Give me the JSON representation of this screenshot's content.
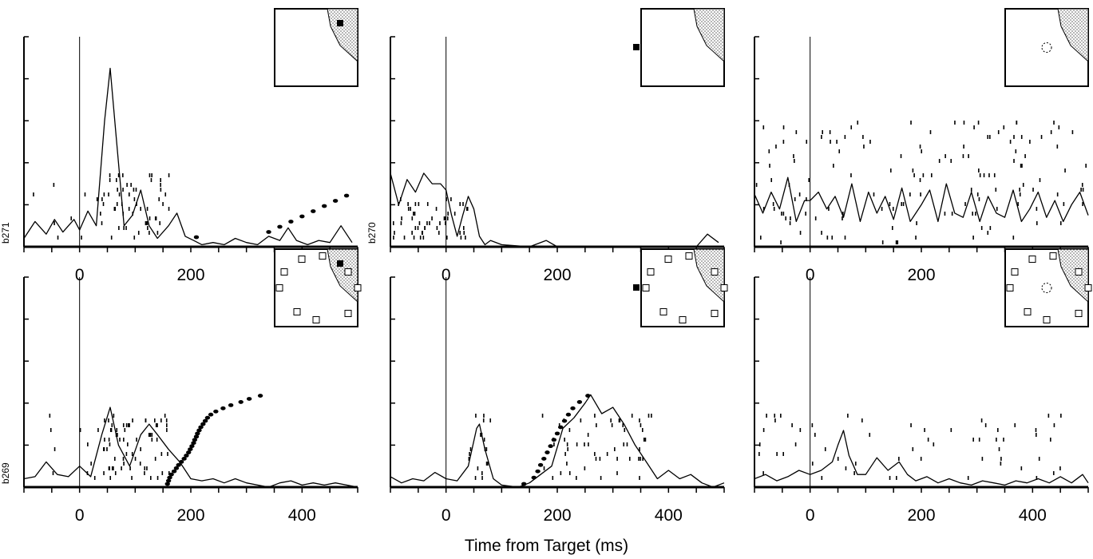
{
  "figure": {
    "xaxis_title": "Time from Target (ms)",
    "colors": {
      "ink": "#000000",
      "background": "#ffffff",
      "shaded_region": "#888888"
    }
  },
  "chart_data": [
    {
      "type": "raster",
      "unit_label": "b271",
      "x_ticks": [
        0,
        200,
        400
      ],
      "xlim": [
        -100,
        500
      ],
      "target_line_x": 0,
      "inset": {
        "stimulus": "filled-square",
        "stimulus_location": "upper-right",
        "shaded_region": "upper-right",
        "array": false
      },
      "density_curve": {
        "x": [
          -100,
          -80,
          -60,
          -45,
          -30,
          -10,
          0,
          15,
          30,
          45,
          55,
          65,
          80,
          95,
          110,
          125,
          140,
          160,
          175,
          190,
          205,
          220,
          240,
          260,
          280,
          300,
          320,
          340,
          360,
          375,
          390,
          410,
          430,
          450,
          470,
          490
        ],
        "y": [
          0.04,
          0.12,
          0.06,
          0.13,
          0.07,
          0.13,
          0.08,
          0.17,
          0.1,
          0.6,
          0.85,
          0.55,
          0.1,
          0.15,
          0.27,
          0.1,
          0.04,
          0.1,
          0.16,
          0.05,
          0.03,
          0.01,
          0.02,
          0.01,
          0.04,
          0.02,
          0.01,
          0.05,
          0.03,
          0.09,
          0.03,
          0.01,
          0.03,
          0.02,
          0.1,
          0.02
        ]
      },
      "saccade_onsets": [
        210,
        340,
        360,
        380,
        400,
        420,
        440,
        460,
        480
      ]
    },
    {
      "type": "raster",
      "unit_label": "b270",
      "x_ticks": [
        0,
        200,
        400
      ],
      "xlim": [
        -100,
        500
      ],
      "target_line_x": 0,
      "inset": {
        "stimulus": "filled-square",
        "stimulus_location": "left",
        "shaded_region": "upper-right",
        "array": false
      },
      "density_curve": {
        "x": [
          -100,
          -85,
          -70,
          -55,
          -40,
          -25,
          -10,
          0,
          10,
          20,
          30,
          40,
          50,
          60,
          70,
          80,
          100,
          150,
          180,
          200,
          250,
          300,
          350,
          400,
          450,
          470,
          490
        ],
        "y": [
          0.35,
          0.2,
          0.32,
          0.26,
          0.35,
          0.3,
          0.3,
          0.27,
          0.15,
          0.05,
          0.15,
          0.24,
          0.18,
          0.05,
          0.01,
          0.03,
          0.01,
          0.0,
          0.03,
          0.0,
          0.0,
          0.0,
          0.0,
          0.0,
          0.0,
          0.06,
          0.02
        ]
      },
      "saccade_onsets": []
    },
    {
      "type": "raster",
      "unit_label": "",
      "x_ticks": [
        0,
        200,
        400
      ],
      "xlim": [
        -100,
        500
      ],
      "target_line_x": 0,
      "inset": {
        "stimulus": "dashed-circle",
        "stimulus_location": "center",
        "shaded_region": "upper-right",
        "array": false
      },
      "density_curve": {
        "x": [
          -100,
          -85,
          -70,
          -55,
          -40,
          -25,
          -10,
          0,
          15,
          30,
          45,
          60,
          75,
          90,
          105,
          120,
          135,
          150,
          165,
          180,
          200,
          215,
          230,
          245,
          260,
          275,
          290,
          305,
          320,
          335,
          350,
          365,
          380,
          395,
          410,
          425,
          440,
          455,
          470,
          485,
          500
        ],
        "y": [
          0.25,
          0.16,
          0.26,
          0.18,
          0.33,
          0.12,
          0.22,
          0.22,
          0.26,
          0.18,
          0.24,
          0.14,
          0.3,
          0.12,
          0.26,
          0.16,
          0.24,
          0.13,
          0.28,
          0.12,
          0.2,
          0.27,
          0.12,
          0.3,
          0.16,
          0.14,
          0.26,
          0.12,
          0.24,
          0.16,
          0.14,
          0.27,
          0.12,
          0.18,
          0.26,
          0.14,
          0.22,
          0.12,
          0.2,
          0.26,
          0.15
        ]
      },
      "saccade_onsets": []
    },
    {
      "type": "raster",
      "unit_label": "b269",
      "x_ticks": [
        0,
        200,
        400
      ],
      "xlim": [
        -100,
        500
      ],
      "target_line_x": 0,
      "inset": {
        "stimulus": "filled-square",
        "stimulus_location": "upper-right",
        "shaded_region": "upper-right",
        "array": true
      },
      "density_curve": {
        "x": [
          -100,
          -80,
          -60,
          -40,
          -20,
          0,
          20,
          40,
          55,
          70,
          90,
          110,
          125,
          140,
          160,
          180,
          200,
          220,
          240,
          260,
          280,
          300,
          320,
          340,
          360,
          380,
          400,
          420,
          440,
          460,
          480,
          500
        ],
        "y": [
          0.04,
          0.05,
          0.12,
          0.06,
          0.05,
          0.1,
          0.05,
          0.25,
          0.38,
          0.2,
          0.1,
          0.25,
          0.3,
          0.25,
          0.18,
          0.12,
          0.04,
          0.03,
          0.04,
          0.02,
          0.04,
          0.02,
          0.01,
          0.0,
          0.02,
          0.03,
          0.01,
          0.02,
          0.01,
          0.02,
          0.01,
          0.0
        ]
      },
      "saccade_onsets": [
        158,
        160,
        162,
        165,
        170,
        174,
        178,
        183,
        188,
        192,
        196,
        199,
        202,
        205,
        207,
        210,
        212,
        215,
        218,
        222,
        226,
        230,
        236,
        245,
        258,
        272,
        290,
        305,
        325
      ]
    },
    {
      "type": "raster",
      "unit_label": "",
      "x_ticks": [
        0,
        200,
        400
      ],
      "xlim": [
        -100,
        500
      ],
      "target_line_x": 0,
      "inset": {
        "stimulus": "filled-square",
        "stimulus_location": "left",
        "shaded_region": "upper-right",
        "array": true
      },
      "density_curve": {
        "x": [
          -100,
          -80,
          -60,
          -40,
          -20,
          0,
          20,
          40,
          55,
          60,
          70,
          85,
          100,
          130,
          150,
          170,
          190,
          210,
          230,
          250,
          260,
          280,
          300,
          320,
          340,
          360,
          380,
          400,
          420,
          440,
          460,
          480,
          500
        ],
        "y": [
          0.05,
          0.02,
          0.04,
          0.03,
          0.07,
          0.04,
          0.03,
          0.1,
          0.28,
          0.3,
          0.18,
          0.04,
          0.01,
          0.0,
          0.02,
          0.06,
          0.1,
          0.28,
          0.33,
          0.4,
          0.44,
          0.35,
          0.38,
          0.3,
          0.2,
          0.12,
          0.04,
          0.08,
          0.04,
          0.06,
          0.02,
          0.0,
          0.02
        ]
      },
      "saccade_onsets": [
        140,
        158,
        165,
        170,
        176,
        182,
        188,
        194,
        200,
        206,
        213,
        220,
        228,
        240,
        255
      ]
    },
    {
      "type": "raster",
      "unit_label": "",
      "x_ticks": [
        0,
        200,
        400
      ],
      "xlim": [
        -100,
        500
      ],
      "target_line_x": 0,
      "inset": {
        "stimulus": "dashed-circle",
        "stimulus_location": "center",
        "shaded_region": "upper-right",
        "array": true
      },
      "density_curve": {
        "x": [
          -100,
          -80,
          -60,
          -40,
          -20,
          0,
          20,
          40,
          50,
          60,
          70,
          85,
          100,
          120,
          140,
          160,
          175,
          190,
          210,
          230,
          250,
          270,
          290,
          310,
          330,
          350,
          370,
          390,
          410,
          430,
          450,
          470,
          490,
          500
        ],
        "y": [
          0.04,
          0.06,
          0.03,
          0.05,
          0.08,
          0.06,
          0.08,
          0.12,
          0.2,
          0.27,
          0.15,
          0.06,
          0.06,
          0.14,
          0.08,
          0.12,
          0.06,
          0.03,
          0.05,
          0.02,
          0.04,
          0.02,
          0.01,
          0.03,
          0.02,
          0.01,
          0.03,
          0.02,
          0.04,
          0.02,
          0.05,
          0.02,
          0.06,
          0.02
        ]
      },
      "saccade_onsets": []
    }
  ]
}
